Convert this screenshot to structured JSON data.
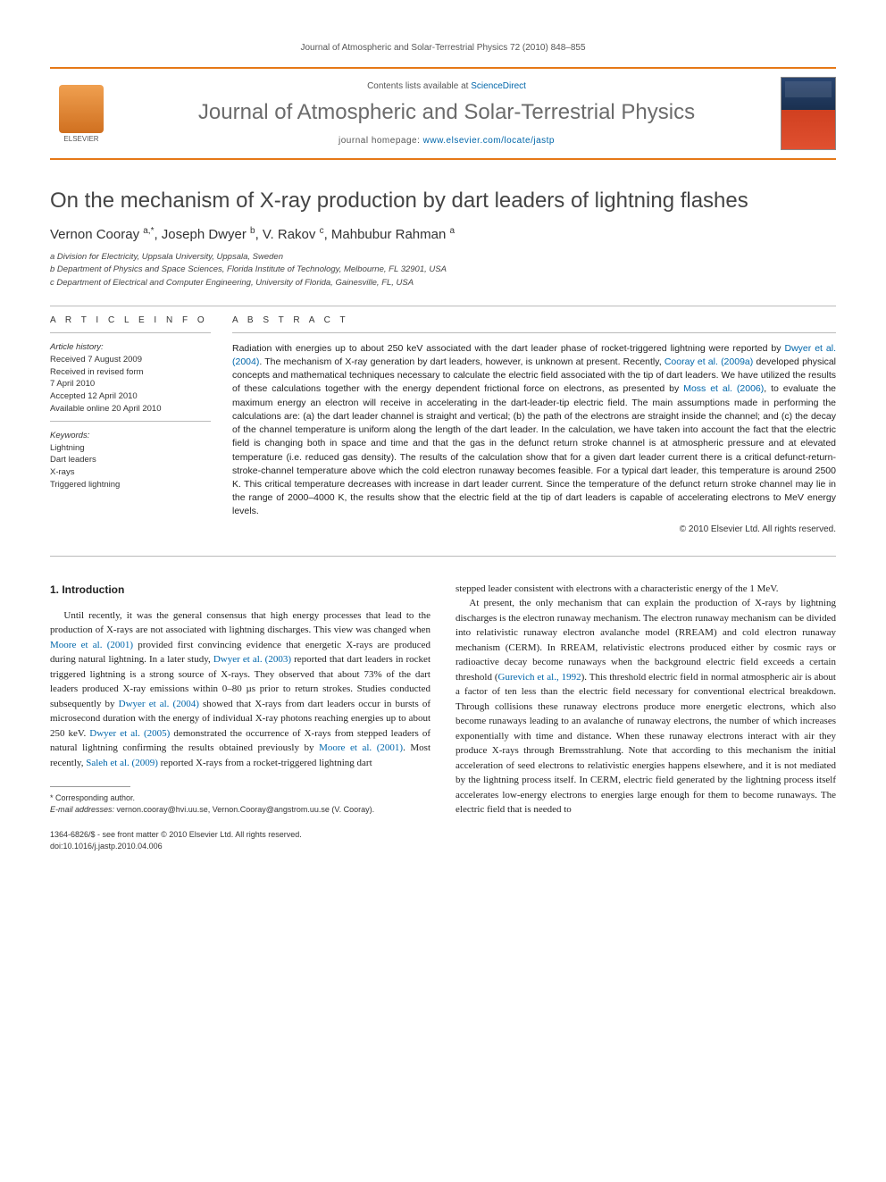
{
  "running_head": "Journal of Atmospheric and Solar-Terrestrial Physics 72 (2010) 848–855",
  "masthead": {
    "contents_prefix": "Contents lists available at ",
    "contents_link": "ScienceDirect",
    "journal_name": "Journal of Atmospheric and Solar-Terrestrial Physics",
    "homepage_prefix": "journal homepage: ",
    "homepage_link": "www.elsevier.com/locate/jastp",
    "publisher": "ELSEVIER"
  },
  "article": {
    "title": "On the mechanism of X-ray production by dart leaders of lightning flashes",
    "authors_html": "Vernon Cooray <sup>a,*</sup>, Joseph Dwyer <sup>b</sup>, V. Rakov <sup>c</sup>, Mahbubur Rahman <sup>a</sup>",
    "affiliations": [
      "a Division for Electricity, Uppsala University, Uppsala, Sweden",
      "b Department of Physics and Space Sciences, Florida Institute of Technology, Melbourne, FL 32901, USA",
      "c Department of Electrical and Computer Engineering, University of Florida, Gainesville, FL, USA"
    ]
  },
  "info": {
    "label": "A R T I C L E   I N F O",
    "history_label": "Article history:",
    "history": [
      "Received 7 August 2009",
      "Received in revised form",
      "7 April 2010",
      "Accepted 12 April 2010",
      "Available online 20 April 2010"
    ],
    "keywords_label": "Keywords:",
    "keywords": [
      "Lightning",
      "Dart leaders",
      "X-rays",
      "Triggered lightning"
    ]
  },
  "abstract": {
    "label": "A B S T R A C T",
    "text_parts": [
      "Radiation with energies up to about 250 keV associated with the dart leader phase of rocket-triggered lightning were reported by ",
      ". The mechanism of X-ray generation by dart leaders, however, is unknown at present. Recently, ",
      " developed physical concepts and mathematical techniques necessary to calculate the electric field associated with the tip of dart leaders. We have utilized the results of these calculations together with the energy dependent frictional force on electrons, as presented by ",
      ", to evaluate the maximum energy an electron will receive in accelerating in the dart-leader-tip electric field. The main assumptions made in performing the calculations are: (a) the dart leader channel is straight and vertical; (b) the path of the electrons are straight inside the channel; and (c) the decay of the channel temperature is uniform along the length of the dart leader. In the calculation, we have taken into account the fact that the electric field is changing both in space and time and that the gas in the defunct return stroke channel is at atmospheric pressure and at elevated temperature (i.e. reduced gas density). The results of the calculation show that for a given dart leader current there is a critical defunct-return-stroke-channel temperature above which the cold electron runaway becomes feasible. For a typical dart leader, this temperature is around 2500 K. This critical temperature decreases with increase in dart leader current. Since the temperature of the defunct return stroke channel may lie in the range of 2000–4000 K, the results show that the electric field at the tip of dart leaders is capable of accelerating electrons to MeV energy levels."
    ],
    "links": [
      "Dwyer et al. (2004)",
      "Cooray et al. (2009a)",
      "Moss et al. (2006)"
    ],
    "copyright": "© 2010 Elsevier Ltd. All rights reserved."
  },
  "body": {
    "section_heading": "1. Introduction",
    "col1_parts": [
      "Until recently, it was the general consensus that high energy processes that lead to the production of X-rays are not associated with lightning discharges. This view was changed when ",
      " provided first convincing evidence that energetic X-rays are produced during natural lightning. In a later study, ",
      " reported that dart leaders in rocket triggered lightning is a strong source of X-rays. They observed that about 73% of the dart leaders produced X-ray emissions within 0–80 µs prior to return strokes. Studies conducted subsequently by ",
      " showed that X-rays from dart leaders occur in bursts of microsecond duration with the energy of individual X-ray photons reaching energies up to about 250 keV. ",
      " demonstrated the occurrence of X-rays from stepped leaders of natural lightning confirming the results obtained previously by ",
      ". Most recently, ",
      " reported X-rays from a rocket-triggered lightning dart"
    ],
    "col1_links": [
      "Moore et al. (2001)",
      "Dwyer et al. (2003)",
      "Dwyer et al. (2004)",
      "Dwyer et al. (2005)",
      "Moore et al. (2001)",
      "Saleh et al. (2009)"
    ],
    "col2_parts": [
      "stepped leader consistent with electrons with a characteristic energy of the 1 MeV.",
      "At present, the only mechanism that can explain the production of X-rays by lightning discharges is the electron runaway mechanism. The electron runaway mechanism can be divided into relativistic runaway electron avalanche model (RREAM) and cold electron runaway mechanism (CERM). In RREAM, relativistic electrons produced either by cosmic rays or radioactive decay become runaways when the background electric field exceeds a certain threshold (",
      "). This threshold electric field in normal atmospheric air is about a factor of ten less than the electric field necessary for conventional electrical breakdown. Through collisions these runaway electrons produce more energetic electrons, which also become runaways leading to an avalanche of runaway electrons, the number of which increases exponentially with time and distance. When these runaway electrons interact with air they produce X-rays through Bremsstrahlung. Note that according to this mechanism the initial acceleration of seed electrons to relativistic energies happens elsewhere, and it is not mediated by the lightning process itself. In CERM, electric field generated by the lightning process itself accelerates low-energy electrons to energies large enough for them to become runaways. The electric field that is needed to"
    ],
    "col2_links": [
      "Gurevich et al., 1992"
    ]
  },
  "footnotes": {
    "corresponding": "* Corresponding author.",
    "email_label": "E-mail addresses:",
    "emails": " vernon.cooray@hvi.uu.se, Vernon.Cooray@angstrom.uu.se (V. Cooray).",
    "issn_line": "1364-6826/$ - see front matter © 2010 Elsevier Ltd. All rights reserved.",
    "doi_line": "doi:10.1016/j.jastp.2010.04.006"
  },
  "colors": {
    "accent": "#e67817",
    "link": "#0066aa",
    "text": "#333333",
    "muted": "#6b6b6b"
  }
}
